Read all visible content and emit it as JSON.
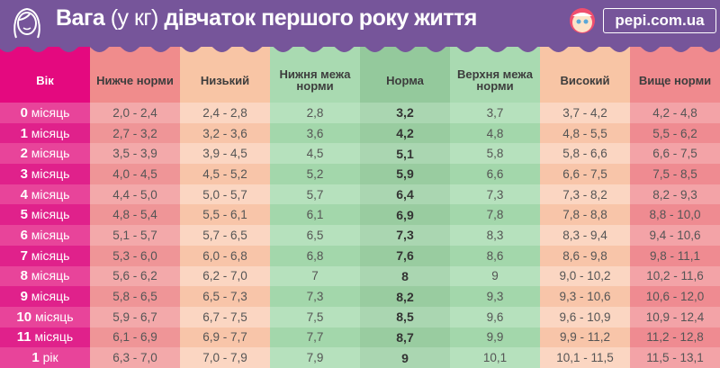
{
  "header": {
    "title_bold_1": "Вага",
    "title_light": " (у кг) ",
    "title_bold_2": "дівчаток першого року життя",
    "logo_text": "pepi.com.ua",
    "colors": {
      "banner": "#76559a",
      "age": "#e4097f",
      "below": "#f08c8c",
      "low": "#f8c5a5",
      "normal_range": "#a9dab1",
      "norm": "#94c99c",
      "above": "#f08a8e"
    }
  },
  "table": {
    "columns": [
      "Вік",
      "Нижче норми",
      "Низький",
      "Нижня межа норми",
      "Норма",
      "Верхня межа норми",
      "Високий",
      "Вище норми"
    ],
    "rows": [
      {
        "age_num": "0",
        "age_unit": " місяць",
        "cells": [
          "2,0 - 2,4",
          "2,4 - 2,8",
          "2,8",
          "3,2",
          "3,7",
          "3,7 - 4,2",
          "4,2 - 4,8"
        ]
      },
      {
        "age_num": "1",
        "age_unit": " місяць",
        "cells": [
          "2,7 - 3,2",
          "3,2 - 3,6",
          "3,6",
          "4,2",
          "4,8",
          "4,8 - 5,5",
          "5,5 - 6,2"
        ]
      },
      {
        "age_num": "2",
        "age_unit": " місяць",
        "cells": [
          "3,5 - 3,9",
          "3,9 - 4,5",
          "4,5",
          "5,1",
          "5,8",
          "5,8 - 6,6",
          "6,6 - 7,5"
        ]
      },
      {
        "age_num": "3",
        "age_unit": " місяць",
        "cells": [
          "4,0 - 4,5",
          "4,5 - 5,2",
          "5,2",
          "5,9",
          "6,6",
          "6,6 - 7,5",
          "7,5 - 8,5"
        ]
      },
      {
        "age_num": "4",
        "age_unit": " місяць",
        "cells": [
          "4,4 - 5,0",
          "5,0 - 5,7",
          "5,7",
          "6,4",
          "7,3",
          "7,3 - 8,2",
          "8,2 - 9,3"
        ]
      },
      {
        "age_num": "5",
        "age_unit": " місяць",
        "cells": [
          "4,8 - 5,4",
          "5,5 - 6,1",
          "6,1",
          "6,9",
          "7,8",
          "7,8 - 8,8",
          "8,8  - 10,0"
        ]
      },
      {
        "age_num": "6",
        "age_unit": " місяць",
        "cells": [
          "5,1 - 5,7",
          "5,7 - 6,5",
          "6,5",
          "7,3",
          "8,3",
          "8,3 - 9,4",
          "9,4 - 10,6"
        ]
      },
      {
        "age_num": "7",
        "age_unit": " місяць",
        "cells": [
          "5,3 - 6,0",
          "6,0 - 6,8",
          "6,8",
          "7,6",
          "8,6",
          "8,6 - 9,8",
          "9,8 - 11,1"
        ]
      },
      {
        "age_num": "8",
        "age_unit": " місяць",
        "cells": [
          "5,6 - 6,2",
          "6,2 - 7,0",
          "7",
          "8",
          "9",
          "9,0 - 10,2",
          "10,2 - 11,6"
        ]
      },
      {
        "age_num": "9",
        "age_unit": " місяць",
        "cells": [
          "5,8 - 6,5",
          "6,5 - 7,3",
          "7,3",
          "8,2",
          "9,3",
          "9,3 - 10,6",
          "10,6 - 12,0"
        ]
      },
      {
        "age_num": "10",
        "age_unit": " місяць",
        "cells": [
          "5,9 - 6,7",
          "6,7 - 7,5",
          "7,5",
          "8,5",
          "9,6",
          "9,6 - 10,9",
          "10,9 - 12,4"
        ]
      },
      {
        "age_num": "11",
        "age_unit": " місяць",
        "cells": [
          "6,1 - 6,9",
          "6,9 - 7,7",
          "7,7",
          "8,7",
          "9,9",
          "9,9 - 11,2",
          "11,2 - 12,8"
        ]
      },
      {
        "age_num": "1",
        "age_unit": " рік",
        "cells": [
          "6,3 - 7,0",
          "7,0 - 7,9",
          "7,9",
          "9",
          "10,1",
          "10,1 - 11,5",
          "11,5 - 13,1"
        ]
      }
    ]
  }
}
